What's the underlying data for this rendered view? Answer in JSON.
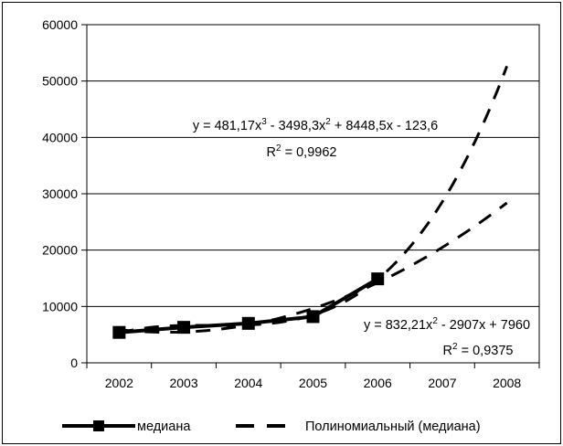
{
  "chart_data": {
    "type": "line",
    "x": [
      2002,
      2003,
      2004,
      2005,
      2006,
      2007,
      2008
    ],
    "ylim": [
      0,
      60000
    ],
    "yticks": [
      0,
      10000,
      20000,
      30000,
      40000,
      50000,
      60000
    ],
    "grid": true,
    "legend_position": "bottom",
    "series": [
      {
        "name": "медиана",
        "color": "#000000",
        "style": "solid-square-markers",
        "x": [
          2002,
          2003,
          2004,
          2005,
          2006
        ],
        "values": [
          5400,
          6300,
          7000,
          8200,
          14900
        ]
      }
    ],
    "trendlines": [
      {
        "label": "Полиномиальный (медиана)",
        "kind": "poly3",
        "coefficients": [
          481.17,
          -3498.3,
          8448.5,
          -123.6
        ],
        "x_start": 2002,
        "x_end": 2008,
        "equation_parts": {
          "a": "y = 481,17x",
          "sup1": "3",
          "b": " - 3498,3x",
          "sup2": "2",
          "c": " + 8448,5x - 123,6"
        },
        "r2_prefix": "R",
        "r2_sup": "2",
        "r2_value": " = 0,9962"
      },
      {
        "label": "Полиномиальный (медиана)",
        "kind": "poly2",
        "coefficients": [
          832.21,
          -2907,
          7960
        ],
        "x_start": 2002,
        "x_end": 2008,
        "equation_parts": {
          "a": "y = 832,21x",
          "sup1": "2",
          "b": " - 2907x + 7960"
        },
        "r2_prefix": "R",
        "r2_sup": "2",
        "r2_value": " = 0,9375"
      }
    ],
    "legend": {
      "series_label": "медиана",
      "trend_label": "Полиномиальный (медиана)"
    }
  }
}
